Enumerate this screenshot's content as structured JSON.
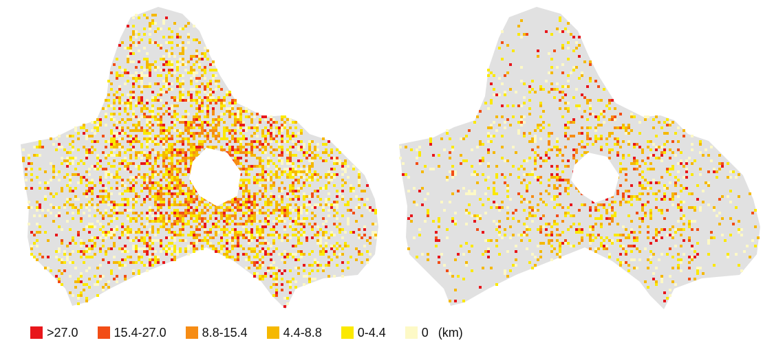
{
  "legend": {
    "items": [
      {
        "label": ">27.0",
        "color": "#e8161b"
      },
      {
        "label": "15.4-27.0",
        "color": "#f24d16"
      },
      {
        "label": "8.8-15.4",
        "color": "#f68c14"
      },
      {
        "label": "4.4-8.8",
        "color": "#f5b800"
      },
      {
        "label": "0-4.4",
        "color": "#fbe900"
      },
      {
        "label": "0",
        "color": "#fdf9c6"
      }
    ],
    "unit": "(km)"
  },
  "colors": {
    "background_region": "#e1e1e1",
    "urban_core": "#ffffff"
  }
}
